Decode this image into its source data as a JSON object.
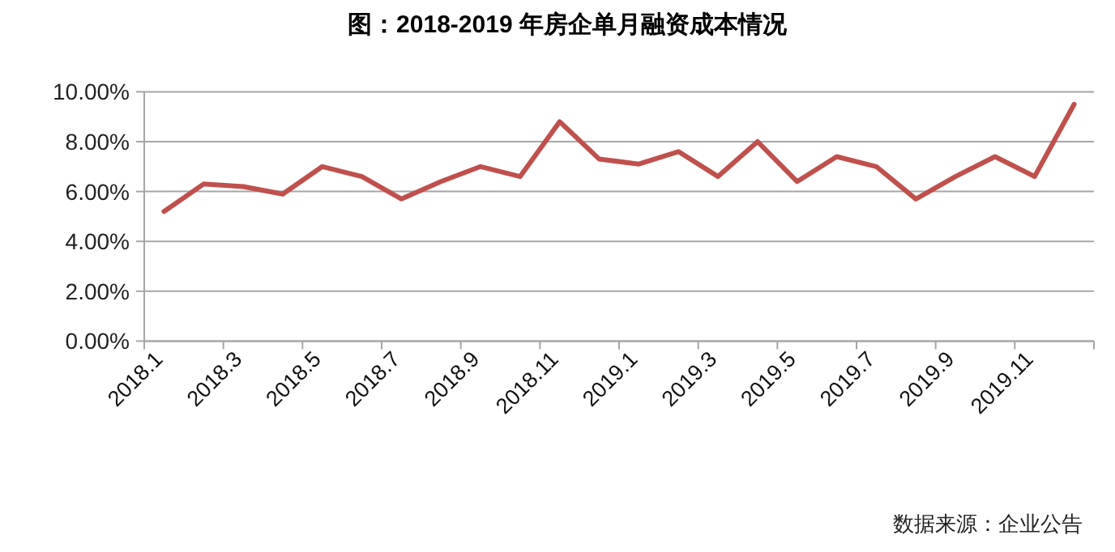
{
  "chart_data": {
    "type": "line",
    "title": "图：2018-2019 年房企单月融资成本情况",
    "categories": [
      "2018.1",
      null,
      "2018.3",
      null,
      "2018.5",
      null,
      "2018.7",
      null,
      "2018.9",
      null,
      "2018.11",
      null,
      "2019.1",
      null,
      "2019.3",
      null,
      "2019.5",
      null,
      "2019.7",
      null,
      "2019.9",
      null,
      "2019.11",
      null
    ],
    "series": [
      {
        "color": "#c0504d",
        "values": [
          5.2,
          6.3,
          6.2,
          5.9,
          7.0,
          6.6,
          5.7,
          6.4,
          7.0,
          6.6,
          8.8,
          7.3,
          7.1,
          7.6,
          6.6,
          8.0,
          6.4,
          7.4,
          7.0,
          5.7,
          6.6,
          7.4,
          6.6,
          9.5
        ]
      }
    ],
    "ylim": [
      0,
      10
    ],
    "yticks": [
      {
        "value": 0,
        "label": "0.00%"
      },
      {
        "value": 2,
        "label": "2.00%"
      },
      {
        "value": 4,
        "label": "4.00%"
      },
      {
        "value": 6,
        "label": "6.00%"
      },
      {
        "value": 8,
        "label": "8.00%"
      },
      {
        "value": 10,
        "label": "10.00%"
      }
    ],
    "grid": "y",
    "marker": "none",
    "line_style": "solid",
    "annotations": [
      "数据来源：企业公告"
    ]
  }
}
